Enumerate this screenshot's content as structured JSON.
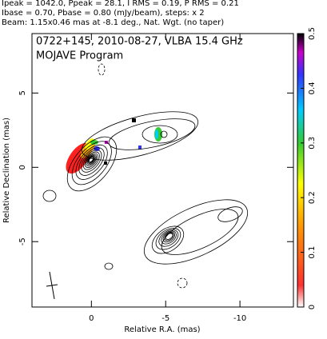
{
  "header": {
    "lines": [
      "Ipeak = 1042.0, Ppeak = 28.1, I RMS = 0.19, P RMS = 0.21",
      "Ibase = 0.70, Pbase = 0.80 (mJy/beam), steps: x 2",
      "Beam: 1.15x0.46 mas at -8.1 deg., Nat. Wgt. (no taper)"
    ]
  },
  "chart_data": {
    "type": "contour",
    "annotations": [
      "0722+145, 2010-08-27, VLBA 15.4 GHz",
      "MOJAVE Program"
    ],
    "xlabel": "Relative R.A. (mas)",
    "ylabel": "Relative Declination (mas)",
    "xlim": [
      4.0,
      -13.6
    ],
    "xticks": [
      0,
      -5,
      -10
    ],
    "ylim": [
      -9.4,
      9.0
    ],
    "yticks": [
      -5,
      0,
      5
    ],
    "colorbar": {
      "lim": [
        0,
        0.5
      ],
      "ticks": [
        0,
        0.1,
        0.2,
        0.3,
        0.4,
        0.5
      ]
    }
  }
}
